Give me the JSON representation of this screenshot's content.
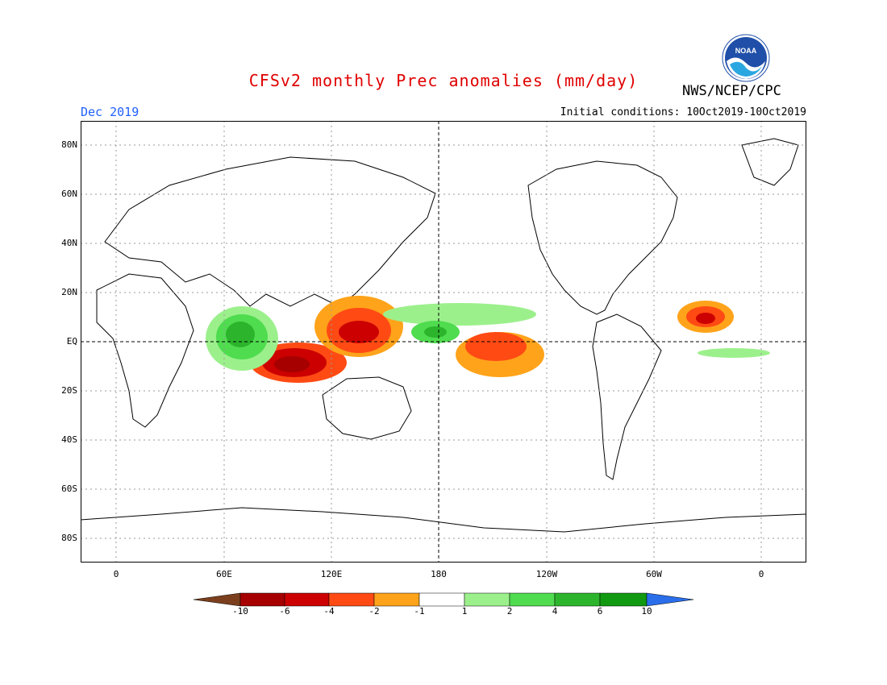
{
  "title": "CFSv2 monthly Prec anomalies (mm/day)",
  "agency": "NWS/NCEP/CPC",
  "logo_text": "NOAA",
  "valid_month": "Dec 2019",
  "initial_conditions": "Initial conditions: 10Oct2019-10Oct2019",
  "colors": {
    "title": "#e00000",
    "valid": "#2060ff",
    "dry_extreme": "#7b3f1d",
    "dry_6_10": "#a60000",
    "dry_4_6": "#cc0000",
    "dry_2_4": "#ff4a14",
    "dry_1_2": "#ffa31a",
    "neutral": "#ffffff",
    "wet_1_2": "#9cf08c",
    "wet_2_4": "#4fdc4f",
    "wet_4_6": "#2cb52c",
    "wet_6_10": "#119a11",
    "wet_extreme": "#2a6eea"
  },
  "lat_labels": [
    "80N",
    "60N",
    "40N",
    "20N",
    "EQ",
    "20S",
    "40S",
    "60S",
    "80S"
  ],
  "lon_labels": [
    "0",
    "60E",
    "120E",
    "180",
    "120W",
    "60W",
    "0"
  ],
  "colorbar_labels": [
    "-10",
    "-6",
    "-4",
    "-2",
    "-1",
    "1",
    "2",
    "4",
    "6",
    "10"
  ],
  "anomaly_regions": [
    {
      "name": "eastern-indian-ocean-maritime-continent",
      "lon": 100,
      "lat": -8,
      "value": -8
    },
    {
      "name": "western-pacific",
      "lon": 140,
      "lat": 8,
      "value": -5
    },
    {
      "name": "central-pacific-south",
      "lon": 205,
      "lat": -5,
      "value": -4
    },
    {
      "name": "tropical-north-atlantic",
      "lon": 330,
      "lat": 10,
      "value": -6
    },
    {
      "name": "western-indian-ocean",
      "lon": 70,
      "lat": 0,
      "value": 6
    },
    {
      "name": "equatorial-central-pacific",
      "lon": 185,
      "lat": 4,
      "value": 3
    },
    {
      "name": "equatorial-atlantic",
      "lon": 345,
      "lat": -5,
      "value": 2
    }
  ]
}
